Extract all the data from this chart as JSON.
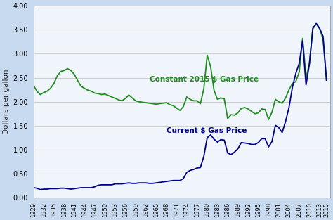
{
  "ylabel": "Dollars per gallon",
  "bg_color": "#c8daf0",
  "plot_bg_color": "#f0f5fb",
  "constant_color": "#228B22",
  "current_color": "#00008b",
  "constant_label": "Constant 2015 $ Gas Price",
  "current_label": "Current $ Gas Price",
  "years": [
    1929,
    1930,
    1931,
    1932,
    1933,
    1934,
    1935,
    1936,
    1937,
    1938,
    1939,
    1940,
    1941,
    1942,
    1943,
    1944,
    1945,
    1946,
    1947,
    1948,
    1949,
    1950,
    1951,
    1952,
    1953,
    1954,
    1955,
    1956,
    1957,
    1958,
    1959,
    1960,
    1961,
    1962,
    1963,
    1964,
    1965,
    1966,
    1967,
    1968,
    1969,
    1970,
    1971,
    1972,
    1973,
    1974,
    1975,
    1976,
    1977,
    1978,
    1979,
    1980,
    1981,
    1982,
    1983,
    1984,
    1985,
    1986,
    1987,
    1988,
    1989,
    1990,
    1991,
    1992,
    1993,
    1994,
    1995,
    1996,
    1997,
    1998,
    1999,
    2000,
    2001,
    2002,
    2003,
    2004,
    2005,
    2006,
    2007,
    2008,
    2009,
    2010,
    2011,
    2012,
    2013,
    2014,
    2015
  ],
  "constant": [
    2.35,
    2.22,
    2.15,
    2.19,
    2.22,
    2.28,
    2.38,
    2.54,
    2.63,
    2.65,
    2.69,
    2.65,
    2.57,
    2.44,
    2.32,
    2.28,
    2.24,
    2.22,
    2.18,
    2.17,
    2.15,
    2.16,
    2.13,
    2.1,
    2.07,
    2.04,
    2.02,
    2.07,
    2.14,
    2.08,
    2.02,
    2.0,
    1.99,
    1.98,
    1.97,
    1.96,
    1.95,
    1.96,
    1.97,
    1.98,
    1.94,
    1.92,
    1.87,
    1.82,
    1.9,
    2.1,
    2.05,
    2.02,
    2.02,
    1.96,
    2.27,
    2.97,
    2.73,
    2.24,
    2.05,
    2.08,
    2.06,
    1.65,
    1.73,
    1.72,
    1.77,
    1.86,
    1.88,
    1.85,
    1.8,
    1.75,
    1.77,
    1.85,
    1.84,
    1.63,
    1.78,
    2.05,
    2.0,
    1.97,
    2.08,
    2.25,
    2.38,
    2.42,
    2.62,
    3.32,
    2.5,
    2.8,
    3.52,
    3.62,
    3.52,
    3.3,
    2.45
  ],
  "current": [
    0.21,
    0.2,
    0.17,
    0.18,
    0.18,
    0.19,
    0.19,
    0.19,
    0.2,
    0.2,
    0.19,
    0.18,
    0.19,
    0.2,
    0.21,
    0.21,
    0.21,
    0.21,
    0.23,
    0.26,
    0.27,
    0.27,
    0.27,
    0.27,
    0.29,
    0.29,
    0.29,
    0.3,
    0.31,
    0.3,
    0.3,
    0.31,
    0.31,
    0.31,
    0.3,
    0.3,
    0.31,
    0.32,
    0.33,
    0.34,
    0.35,
    0.36,
    0.36,
    0.36,
    0.4,
    0.53,
    0.57,
    0.59,
    0.62,
    0.63,
    0.86,
    1.25,
    1.31,
    1.22,
    1.16,
    1.21,
    1.2,
    0.93,
    0.9,
    0.95,
    1.02,
    1.15,
    1.14,
    1.13,
    1.11,
    1.11,
    1.15,
    1.23,
    1.23,
    1.06,
    1.17,
    1.51,
    1.46,
    1.36,
    1.59,
    1.88,
    2.3,
    2.59,
    2.8,
    3.27,
    2.35,
    2.79,
    3.53,
    3.63,
    3.53,
    3.36,
    2.45
  ],
  "ylim": [
    0.0,
    4.0
  ],
  "yticks": [
    0.0,
    0.5,
    1.0,
    1.5,
    2.0,
    2.5,
    3.0,
    3.5,
    4.0
  ],
  "xticks": [
    1929,
    1932,
    1935,
    1938,
    1941,
    1944,
    1947,
    1950,
    1953,
    1956,
    1959,
    1962,
    1965,
    1968,
    1971,
    1974,
    1977,
    1980,
    1983,
    1986,
    1989,
    1992,
    1995,
    1998,
    2001,
    2004,
    2007,
    2010,
    2013,
    2015
  ],
  "const_ann_x": 1963,
  "const_ann_y": 2.42,
  "curr_ann_x": 1968,
  "curr_ann_y": 1.35
}
